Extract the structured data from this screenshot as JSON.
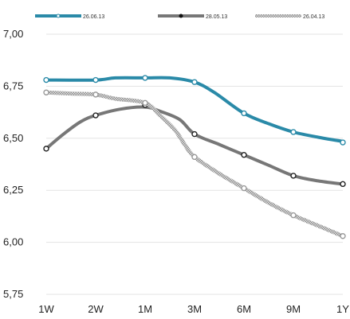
{
  "chart_data": {
    "type": "line",
    "categories": [
      "1W",
      "2W",
      "1M",
      "3M",
      "6M",
      "9M",
      "1Y"
    ],
    "ylim": [
      5.75,
      7.0
    ],
    "yticks": [
      "7,00",
      "6,75",
      "6,50",
      "6,25",
      "6,00",
      "5,75"
    ],
    "ytick_values": [
      7.0,
      6.75,
      6.5,
      6.25,
      6.0,
      5.75
    ],
    "grid": true,
    "legend_position": "top",
    "series": [
      {
        "name": "26.06.13",
        "color": "#2a8aa8",
        "style": "solid",
        "values": [
          6.78,
          6.78,
          6.79,
          6.77,
          6.62,
          6.53,
          6.48
        ],
        "path": [
          [
            0,
            6.78
          ],
          [
            1,
            6.78
          ],
          [
            1.4,
            6.79
          ],
          [
            2,
            6.79
          ],
          [
            2.5,
            6.79
          ],
          [
            3,
            6.77
          ],
          [
            3.4,
            6.72
          ],
          [
            4,
            6.62
          ],
          [
            4.5,
            6.57
          ],
          [
            5,
            6.53
          ],
          [
            5.5,
            6.505
          ],
          [
            6,
            6.485
          ]
        ]
      },
      {
        "name": "28.05.13",
        "color": "#777777",
        "style": "solid",
        "values": [
          6.45,
          6.61,
          6.66,
          6.52,
          6.42,
          6.32,
          6.28
        ],
        "path": [
          [
            0,
            6.45
          ],
          [
            0.35,
            6.52
          ],
          [
            0.7,
            6.58
          ],
          [
            1,
            6.61
          ],
          [
            1.5,
            6.64
          ],
          [
            2,
            6.65
          ],
          [
            2.3,
            6.63
          ],
          [
            2.7,
            6.59
          ],
          [
            3,
            6.52
          ],
          [
            3.5,
            6.47
          ],
          [
            4,
            6.42
          ],
          [
            4.5,
            6.37
          ],
          [
            5,
            6.32
          ],
          [
            5.5,
            6.295
          ],
          [
            6,
            6.28
          ]
        ]
      },
      {
        "name": "26.04.13",
        "color": "#9a9a9a",
        "style": "hatched",
        "values": [
          6.72,
          6.71,
          6.67,
          6.41,
          6.26,
          6.13,
          6.03
        ],
        "path": [
          [
            0,
            6.72
          ],
          [
            0.5,
            6.715
          ],
          [
            1,
            6.71
          ],
          [
            1.4,
            6.69
          ],
          [
            2,
            6.67
          ],
          [
            2.3,
            6.61
          ],
          [
            2.6,
            6.54
          ],
          [
            2.8,
            6.47
          ],
          [
            3,
            6.41
          ],
          [
            3.5,
            6.33
          ],
          [
            4,
            6.26
          ],
          [
            4.5,
            6.19
          ],
          [
            5,
            6.13
          ],
          [
            5.5,
            6.08
          ],
          [
            6,
            6.03
          ]
        ]
      }
    ]
  }
}
